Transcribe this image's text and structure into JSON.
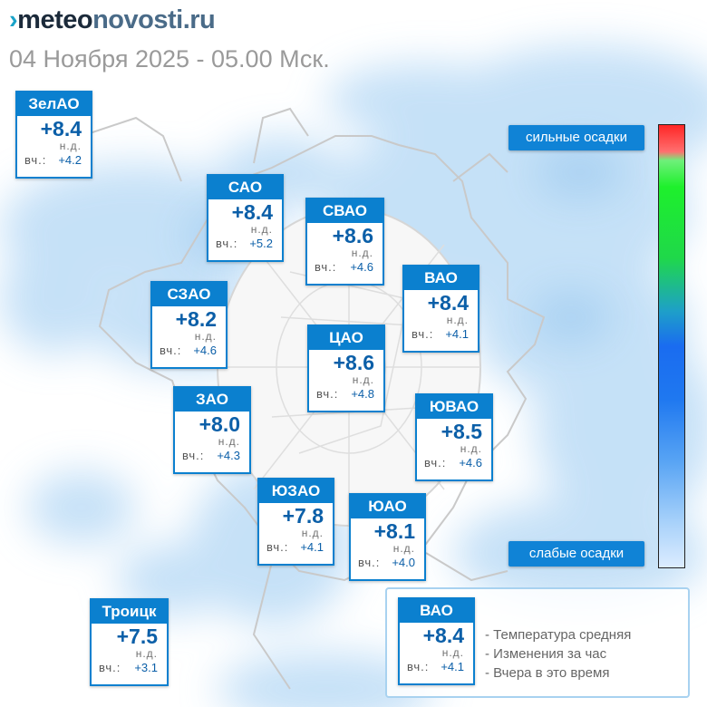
{
  "header": {
    "logo_prefix": "›",
    "logo_main": "meteo",
    "logo_rest": "novosti.ru",
    "date_line": "04 Ноября 2025 - 05.00 Мск."
  },
  "colors": {
    "card_blue": "#0b80cf",
    "temp_blue": "#0b5fa8",
    "precip_light": "#dcecff",
    "precip_heavy": "#ff2626"
  },
  "districts": [
    {
      "name": "ЗелАО",
      "temp": "+8.4",
      "nd": "н.д.",
      "yesterday_label": "вч.:",
      "yesterday": "+4.2"
    },
    {
      "name": "САО",
      "temp": "+8.4",
      "nd": "н.д.",
      "yesterday_label": "вч.:",
      "yesterday": "+5.2"
    },
    {
      "name": "СВАО",
      "temp": "+8.6",
      "nd": "н.д.",
      "yesterday_label": "вч.:",
      "yesterday": "+4.6"
    },
    {
      "name": "ВАО",
      "temp": "+8.4",
      "nd": "н.д.",
      "yesterday_label": "вч.:",
      "yesterday": "+4.1"
    },
    {
      "name": "СЗАО",
      "temp": "+8.2",
      "nd": "н.д.",
      "yesterday_label": "вч.:",
      "yesterday": "+4.6"
    },
    {
      "name": "ЦАО",
      "temp": "+8.6",
      "nd": "н.д.",
      "yesterday_label": "вч.:",
      "yesterday": "+4.8"
    },
    {
      "name": "ЗАО",
      "temp": "+8.0",
      "nd": "н.д.",
      "yesterday_label": "вч.:",
      "yesterday": "+4.3"
    },
    {
      "name": "ЮВАО",
      "temp": "+8.5",
      "nd": "н.д.",
      "yesterday_label": "вч.:",
      "yesterday": "+4.6"
    },
    {
      "name": "ЮЗАО",
      "temp": "+7.8",
      "nd": "н.д.",
      "yesterday_label": "вч.:",
      "yesterday": "+4.1"
    },
    {
      "name": "ЮАО",
      "temp": "+8.1",
      "nd": "н.д.",
      "yesterday_label": "вч.:",
      "yesterday": "+4.0"
    },
    {
      "name": "Троицк",
      "temp": "+7.5",
      "nd": "н.д.",
      "yesterday_label": "вч.:",
      "yesterday": "+3.1"
    }
  ],
  "legend": {
    "sample": {
      "name": "ВАО",
      "temp": "+8.4",
      "nd": "н.д.",
      "yesterday_label": "вч.:",
      "yesterday": "+4.1"
    },
    "lines": [
      "- Температура средняя",
      "- Изменения за час",
      "- Вчера в это время"
    ]
  },
  "precip_scale": {
    "top_label": "сильные осадки",
    "bottom_label": "слабые осадки"
  }
}
